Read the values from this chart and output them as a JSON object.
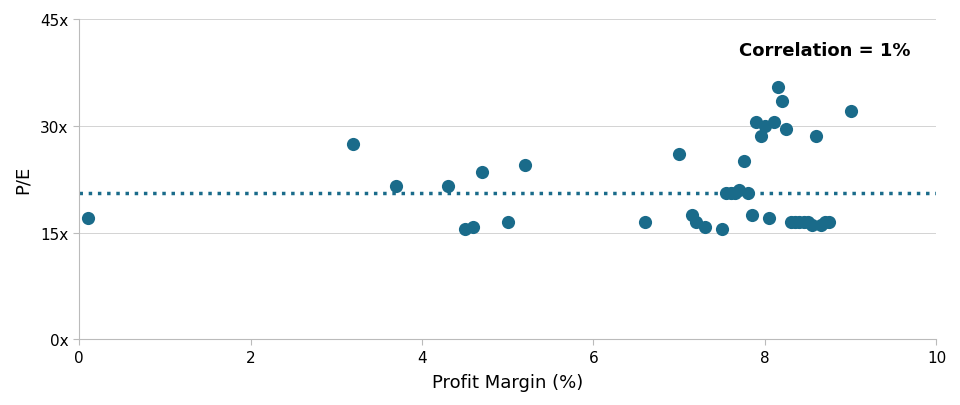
{
  "scatter_x": [
    0.1,
    3.2,
    3.7,
    4.3,
    4.5,
    4.6,
    4.7,
    5.0,
    5.2,
    6.6,
    7.0,
    7.15,
    7.2,
    7.3,
    7.5,
    7.55,
    7.6,
    7.65,
    7.7,
    7.75,
    7.8,
    7.85,
    7.9,
    7.95,
    8.0,
    8.05,
    8.1,
    8.15,
    8.2,
    8.25,
    8.3,
    8.35,
    8.4,
    8.45,
    8.5,
    8.55,
    8.6,
    8.65,
    8.7,
    8.75,
    9.0
  ],
  "scatter_y": [
    17.0,
    27.5,
    21.5,
    21.5,
    15.5,
    15.8,
    23.5,
    16.5,
    24.5,
    16.5,
    26.0,
    17.5,
    16.5,
    15.8,
    15.5,
    20.5,
    20.5,
    20.5,
    21.0,
    25.0,
    20.5,
    17.5,
    30.5,
    28.5,
    30.0,
    17.0,
    30.5,
    35.5,
    33.5,
    29.5,
    16.5,
    16.5,
    16.5,
    16.5,
    16.5,
    16.0,
    28.5,
    16.0,
    16.5,
    16.5,
    32.0
  ],
  "dot_color": "#1a6b8a",
  "dotted_line_y": 20.5,
  "dotted_line_color": "#1a6b8a",
  "annotation_text": "Correlation = 1%",
  "xlabel": "Profit Margin (%)",
  "ylabel": "P/E",
  "xlim": [
    0,
    10
  ],
  "ylim": [
    0,
    45
  ],
  "yticks": [
    0,
    15,
    30,
    45
  ],
  "ytick_labels": [
    "0x",
    "15x",
    "30x",
    "45x"
  ],
  "xticks": [
    0,
    2,
    4,
    6,
    8,
    10
  ],
  "background_color": "#ffffff",
  "dot_size": 90,
  "fontsize_labels": 13,
  "fontsize_annotation": 13,
  "spine_color": "#bbbbbb"
}
